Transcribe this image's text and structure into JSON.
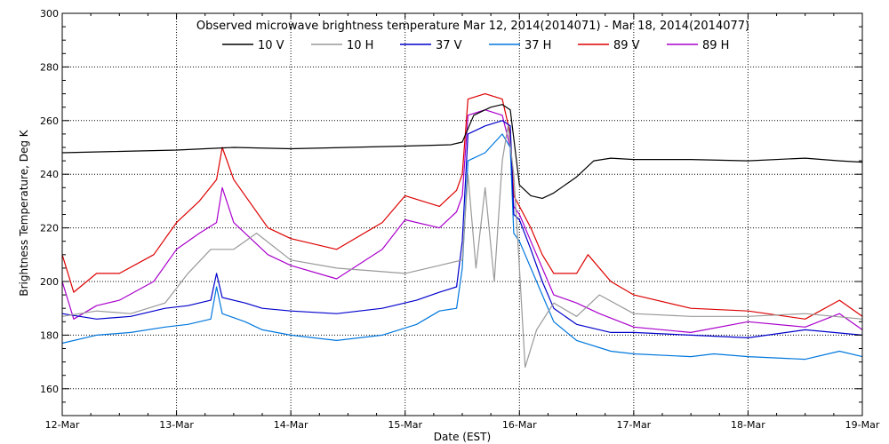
{
  "chart_data": {
    "type": "line",
    "title": "Observed microwave brightness temperature Mar 12, 2014(2014071) - Mar 18, 2014(2014077)",
    "xlabel": "Date (EST)",
    "ylabel": "Brightness Temperature, Deg K",
    "xlim": [
      0,
      7
    ],
    "ylim": [
      150,
      300
    ],
    "grid": true,
    "legend_position": "top",
    "x_tick_values": [
      0,
      1,
      2,
      3,
      4,
      5,
      6,
      7
    ],
    "x_tick_labels": [
      "12-Mar",
      "13-Mar",
      "14-Mar",
      "15-Mar",
      "16-Mar",
      "17-Mar",
      "18-Mar",
      "19-Mar"
    ],
    "y_ticks": [
      160,
      180,
      200,
      220,
      240,
      260,
      280,
      300
    ],
    "series": [
      {
        "name": "10 V",
        "color": "#000000",
        "x": [
          0,
          0.5,
          1,
          1.5,
          2,
          2.5,
          3,
          3.4,
          3.5,
          3.6,
          3.75,
          3.85,
          3.92,
          4.0,
          4.1,
          4.2,
          4.3,
          4.5,
          4.65,
          4.8,
          5.0,
          5.5,
          6.0,
          6.5,
          6.8,
          7.0
        ],
        "y": [
          248,
          248.5,
          249,
          250,
          249.5,
          250,
          250.5,
          251,
          252,
          262,
          265,
          266,
          264,
          236,
          232,
          231,
          233,
          239,
          245,
          246,
          245.5,
          245.5,
          245,
          246,
          245,
          244.5
        ]
      },
      {
        "name": "10 H",
        "color": "#999999",
        "x": [
          0,
          0.3,
          0.6,
          0.9,
          1.1,
          1.3,
          1.5,
          1.7,
          2.0,
          2.4,
          2.7,
          3.0,
          3.3,
          3.5,
          3.55,
          3.62,
          3.7,
          3.78,
          3.85,
          3.9,
          3.95,
          4.0,
          4.05,
          4.15,
          4.3,
          4.5,
          4.7,
          5.0,
          5.5,
          6.0,
          6.5,
          7.0
        ],
        "y": [
          187,
          189,
          188,
          192,
          203,
          212,
          212,
          218,
          208,
          205,
          204,
          203,
          206,
          208,
          240,
          205,
          235,
          200,
          245,
          258,
          240,
          205,
          168,
          182,
          192,
          187,
          195,
          188,
          187,
          187,
          188,
          186
        ]
      },
      {
        "name": "37 V",
        "color": "#0000cc",
        "x": [
          0,
          0.3,
          0.6,
          0.9,
          1.1,
          1.3,
          1.35,
          1.4,
          1.6,
          1.75,
          2.0,
          2.4,
          2.8,
          3.1,
          3.3,
          3.45,
          3.5,
          3.55,
          3.7,
          3.85,
          3.92,
          3.95,
          4.0,
          4.1,
          4.2,
          4.3,
          4.5,
          4.8,
          5.0,
          5.5,
          6.0,
          6.5,
          7.0
        ],
        "y": [
          188,
          186,
          187,
          190,
          191,
          193,
          203,
          194,
          192,
          190,
          189,
          188,
          190,
          193,
          196,
          198,
          215,
          255,
          258,
          260,
          258,
          225,
          223,
          212,
          200,
          190,
          184,
          181,
          181,
          180,
          179,
          182,
          180
        ]
      },
      {
        "name": "37 H",
        "color": "#0077dd",
        "x": [
          0,
          0.3,
          0.6,
          0.9,
          1.1,
          1.3,
          1.35,
          1.4,
          1.6,
          1.75,
          2.0,
          2.4,
          2.8,
          3.1,
          3.3,
          3.45,
          3.5,
          3.55,
          3.7,
          3.85,
          3.92,
          3.95,
          4.0,
          4.1,
          4.2,
          4.3,
          4.5,
          4.8,
          5.0,
          5.5,
          5.7,
          6.0,
          6.5,
          6.8,
          7.0
        ],
        "y": [
          177,
          180,
          181,
          183,
          184,
          186,
          198,
          188,
          185,
          182,
          180,
          178,
          180,
          184,
          189,
          190,
          205,
          245,
          248,
          255,
          250,
          218,
          215,
          205,
          195,
          185,
          178,
          174,
          173,
          172,
          173,
          172,
          171,
          174,
          172
        ]
      },
      {
        "name": "89 V",
        "color": "#dd0000",
        "x": [
          0,
          0.1,
          0.3,
          0.5,
          0.8,
          1.0,
          1.2,
          1.35,
          1.4,
          1.5,
          1.8,
          2.0,
          2.4,
          2.8,
          3.0,
          3.3,
          3.45,
          3.5,
          3.55,
          3.7,
          3.85,
          3.92,
          3.95,
          4.0,
          4.1,
          4.2,
          4.3,
          4.5,
          4.6,
          4.8,
          5.0,
          5.5,
          6.0,
          6.5,
          6.8,
          7.0
        ],
        "y": [
          210,
          196,
          203,
          203,
          210,
          222,
          230,
          238,
          250,
          238,
          220,
          216,
          212,
          222,
          232,
          228,
          234,
          240,
          268,
          270,
          268,
          255,
          232,
          228,
          220,
          210,
          203,
          203,
          210,
          200,
          195,
          190,
          189,
          186,
          193,
          187
        ]
      },
      {
        "name": "89 H",
        "color": "#aa00cc",
        "x": [
          0,
          0.1,
          0.3,
          0.5,
          0.8,
          1.0,
          1.2,
          1.35,
          1.4,
          1.5,
          1.8,
          2.0,
          2.4,
          2.8,
          3.0,
          3.3,
          3.45,
          3.5,
          3.55,
          3.7,
          3.85,
          3.92,
          3.95,
          4.0,
          4.1,
          4.2,
          4.3,
          4.5,
          4.7,
          5.0,
          5.5,
          6.0,
          6.5,
          6.8,
          7.0
        ],
        "y": [
          200,
          186,
          191,
          193,
          200,
          212,
          218,
          222,
          235,
          222,
          210,
          206,
          201,
          212,
          223,
          220,
          226,
          232,
          262,
          264,
          262,
          250,
          228,
          225,
          215,
          205,
          195,
          192,
          188,
          183,
          181,
          185,
          183,
          188,
          182
        ]
      }
    ]
  }
}
